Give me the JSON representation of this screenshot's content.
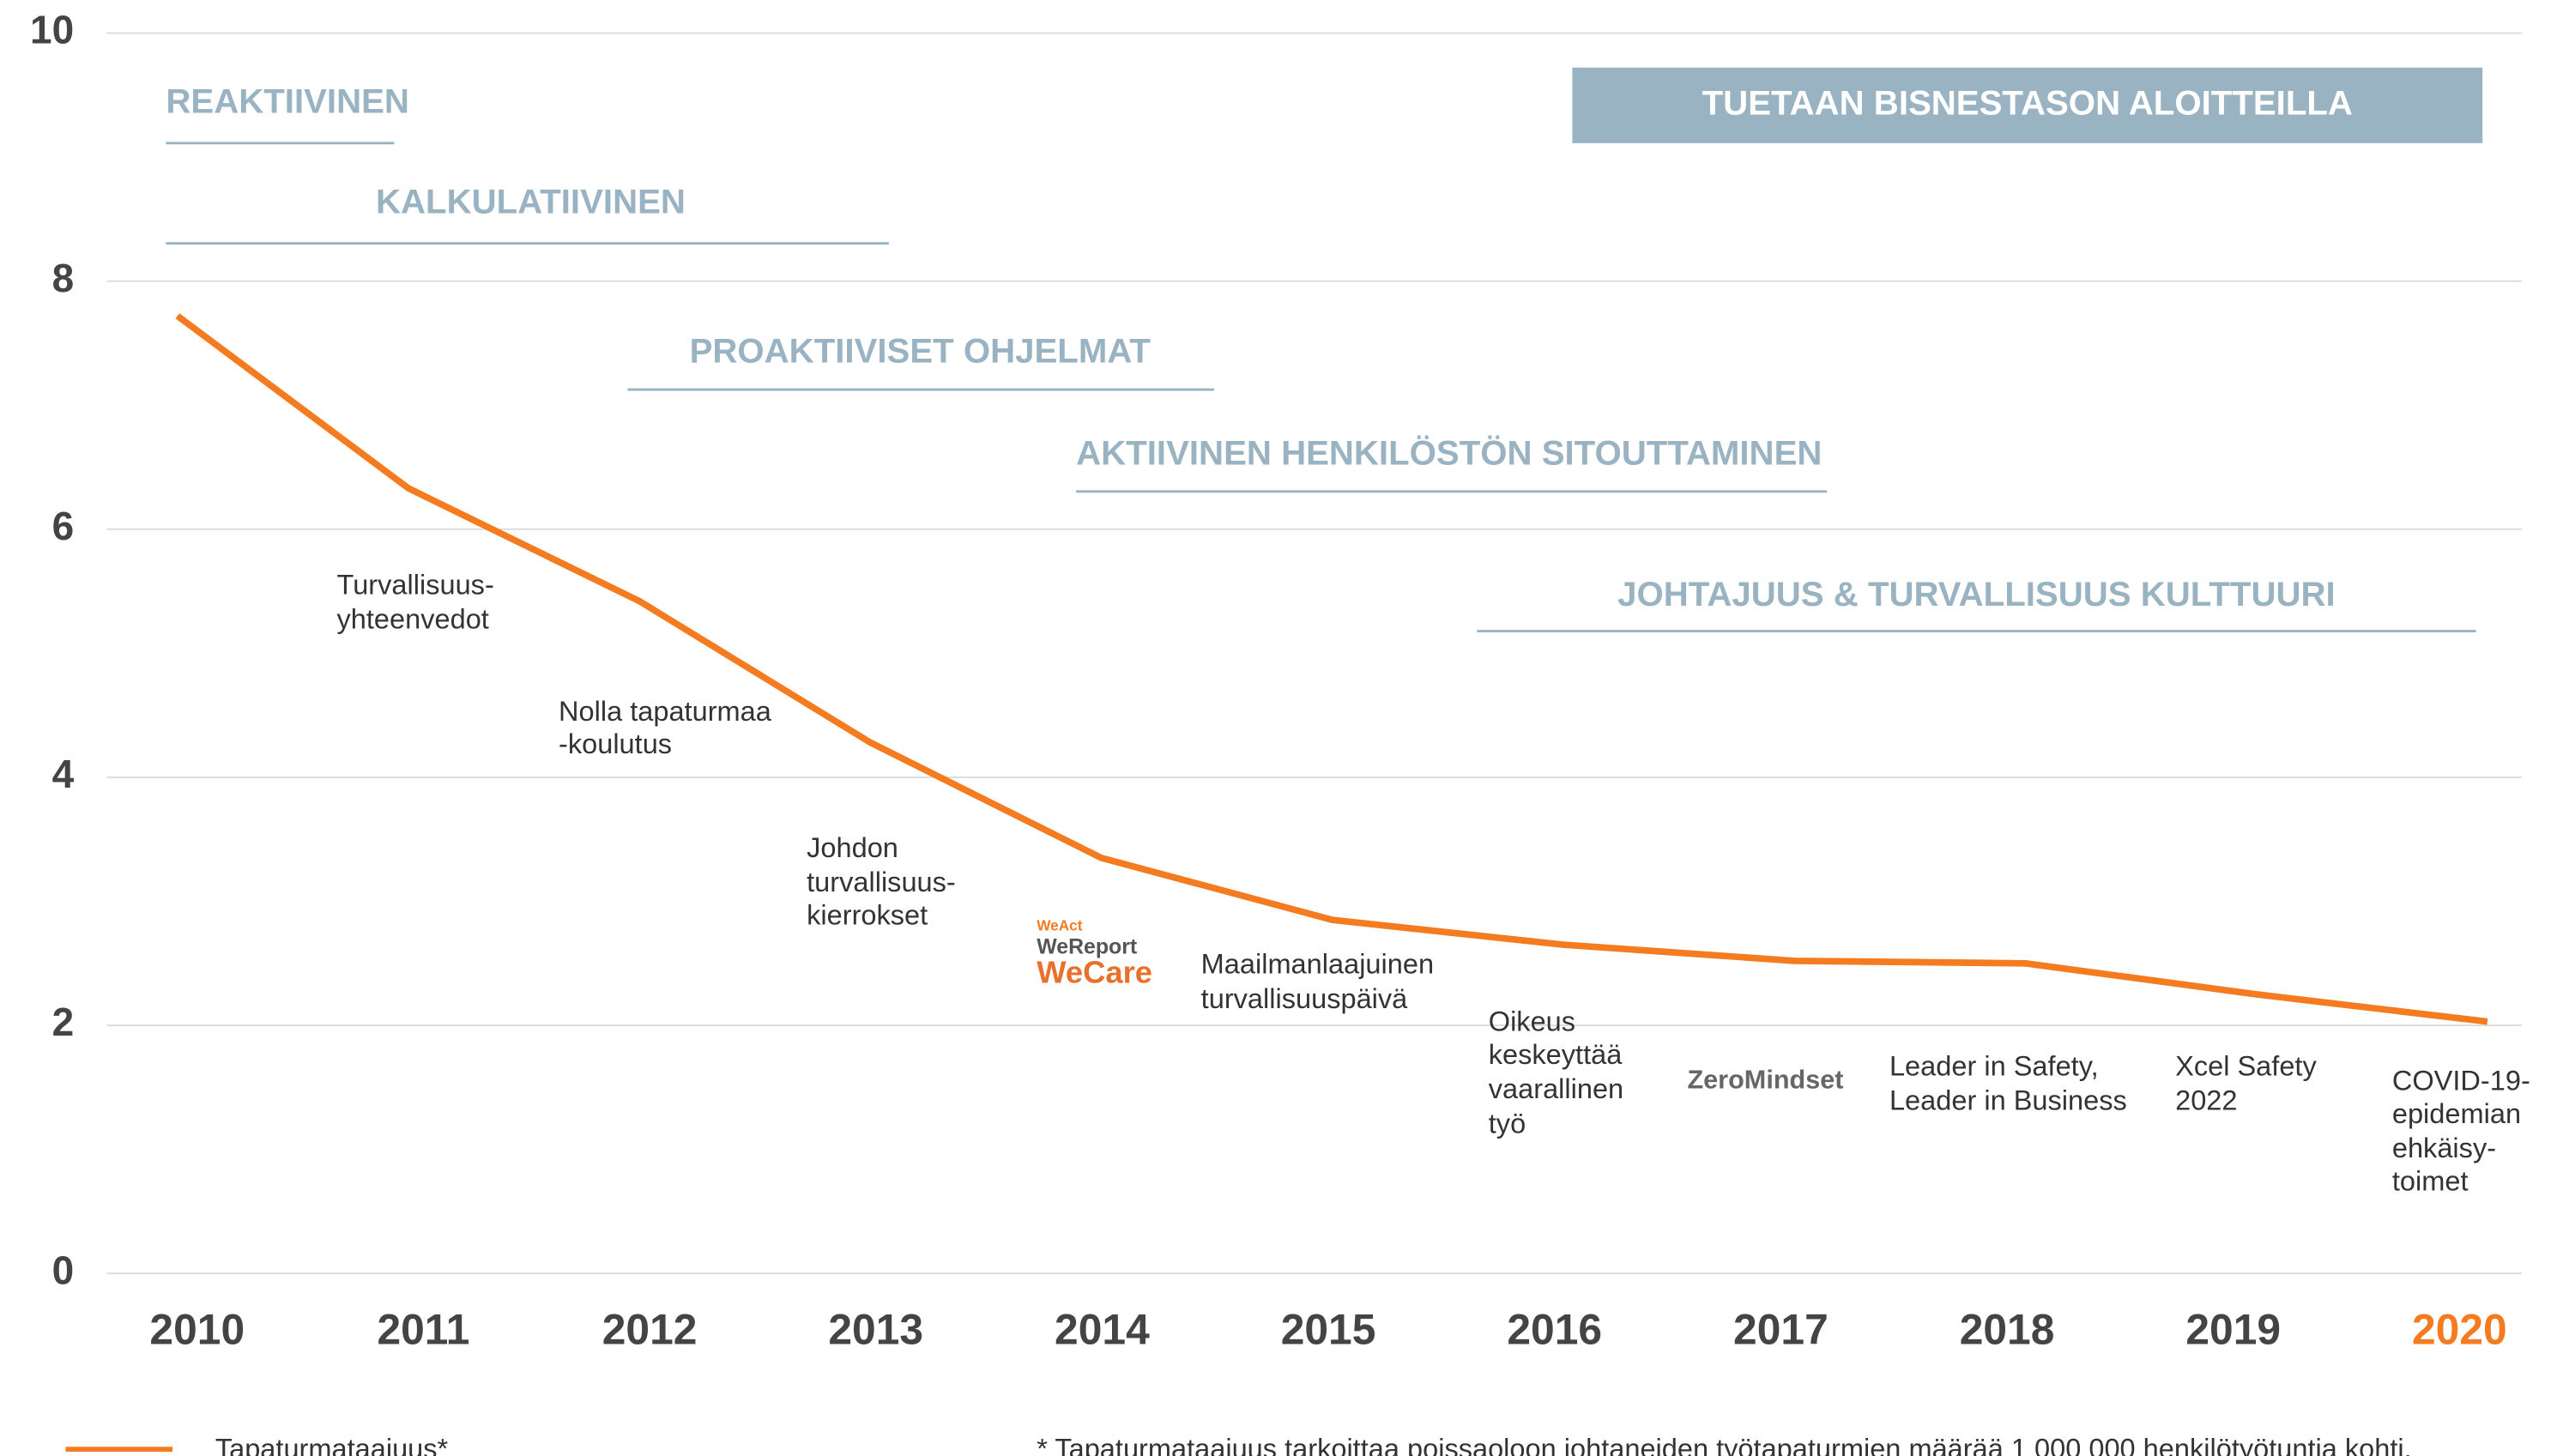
{
  "chart_data": {
    "type": "line",
    "categories": [
      "2010",
      "2011",
      "2012",
      "2013",
      "2014",
      "2015",
      "2016",
      "2017",
      "2018",
      "2019",
      "2020"
    ],
    "series": [
      {
        "name": "Tapaturmataajuus*",
        "color": "#f47b20",
        "values": [
          7.72,
          6.33,
          5.42,
          4.28,
          3.35,
          2.85,
          2.65,
          2.52,
          2.5,
          2.25,
          2.03
        ]
      }
    ],
    "ylim": [
      0,
      10
    ],
    "yticks": [
      0,
      2,
      4,
      6,
      8,
      10
    ],
    "grid": true,
    "phases": [
      "REAKTIIVINEN",
      "KALKULATIIVINEN",
      "PROAKTIIVISET OHJELMAT",
      "AKTIIVINEN HENKILÖSTÖN SITOUTTAMINEN",
      "JOHTAJUUS & TURVALLISUUS KULTTUURI",
      "TUETAAN BISNESTASON ALOITTEILLA"
    ],
    "events": [
      {
        "lines": [
          "Turvallisuus-",
          "yhteenvedot"
        ]
      },
      {
        "lines": [
          "Nolla tapaturmaa",
          "-koulutus"
        ]
      },
      {
        "lines": [
          "Johdon",
          "turvallisuus-",
          "kierrokset"
        ]
      },
      {
        "lines": [
          "WeAct",
          "WeReport",
          "WeCare"
        ]
      },
      {
        "lines": [
          "Maailmanlaajuinen",
          "turvallisuuspäivä"
        ]
      },
      {
        "lines": [
          "Oikeus",
          "keskeyttää",
          "vaarallinen",
          "työ"
        ]
      },
      {
        "lines": [
          "ZeroMindset"
        ]
      },
      {
        "lines": [
          "Leader in Safety,",
          "Leader in Business"
        ]
      },
      {
        "lines": [
          "Xcel Safety",
          "2022"
        ]
      },
      {
        "lines": [
          "COVID-19-",
          "epidemian",
          "ehkäisy-",
          "toimet"
        ]
      }
    ],
    "footnote": "* Tapaturmataajuus tarkoittaa poissaoloon johtaneiden työtapaturmien määrää 1 000 000 henkilötyötuntia kohti."
  }
}
